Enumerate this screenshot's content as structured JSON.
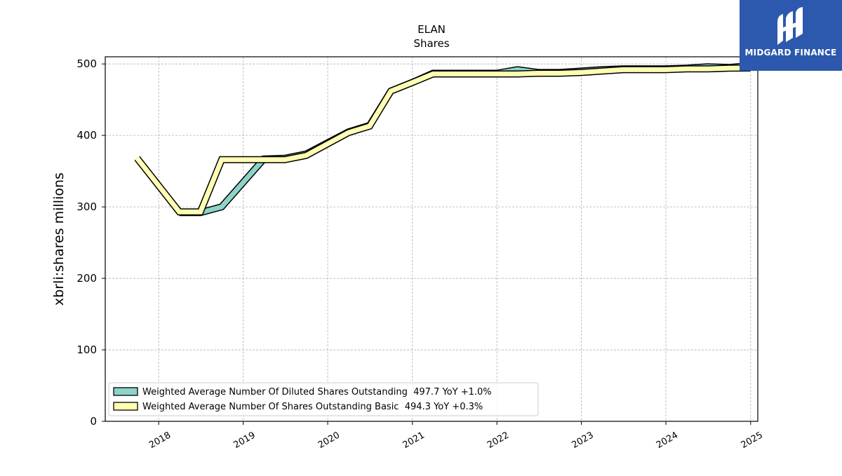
{
  "brand": {
    "name": "MIDGARD FINANCE",
    "color": "#2c59ad"
  },
  "chart_data": {
    "type": "line",
    "title": "ELAN",
    "subtitle": "Shares",
    "ylabel": "xbrli:shares millions",
    "xlabel": "",
    "ylim": [
      0,
      510
    ],
    "yticks": [
      0,
      100,
      200,
      300,
      400,
      500
    ],
    "xticks": [
      "2018",
      "2019",
      "2020",
      "2021",
      "2022",
      "2023",
      "2024",
      "2025"
    ],
    "xlim": [
      "2017-05-15",
      "2025-02-01"
    ],
    "grid": true,
    "legend_position": "lower-left",
    "series": [
      {
        "name": "Weighted Average Number Of Diluted Shares Outstanding  497.7 YoY +1.0%",
        "color": "#8dd3c7",
        "points": [
          [
            "2018-03-31",
            292
          ],
          [
            "2018-06-30",
            292
          ],
          [
            "2018-09-30",
            300
          ],
          [
            "2019-03-31",
            367
          ],
          [
            "2019-06-30",
            368
          ],
          [
            "2019-09-30",
            374
          ],
          [
            "2020-03-31",
            405
          ],
          [
            "2020-06-30",
            414
          ],
          [
            "2020-09-30",
            462
          ],
          [
            "2020-12-31",
            474
          ],
          [
            "2021-03-31",
            487
          ],
          [
            "2021-06-30",
            487
          ],
          [
            "2021-12-31",
            487
          ],
          [
            "2022-03-31",
            492
          ],
          [
            "2022-06-30",
            488
          ],
          [
            "2022-09-30",
            488
          ],
          [
            "2022-12-31",
            490
          ],
          [
            "2023-03-31",
            492
          ],
          [
            "2023-06-30",
            493
          ],
          [
            "2023-09-30",
            493
          ],
          [
            "2023-12-31",
            493
          ],
          [
            "2024-03-31",
            494
          ],
          [
            "2024-06-30",
            496
          ],
          [
            "2024-09-30",
            495
          ],
          [
            "2024-12-31",
            497.7
          ]
        ]
      },
      {
        "name": "Weighted Average Number Of Shares Outstanding Basic  494.3 YoY +0.3%",
        "color": "#ffffb3",
        "points": [
          [
            "2017-09-30",
            368
          ],
          [
            "2018-03-31",
            293
          ],
          [
            "2018-06-30",
            293
          ],
          [
            "2018-09-30",
            366
          ],
          [
            "2019-03-31",
            366
          ],
          [
            "2019-06-30",
            366
          ],
          [
            "2019-09-30",
            372
          ],
          [
            "2020-03-31",
            404
          ],
          [
            "2020-06-30",
            413
          ],
          [
            "2020-09-30",
            462
          ],
          [
            "2020-12-31",
            474
          ],
          [
            "2021-03-31",
            486
          ],
          [
            "2021-06-30",
            486
          ],
          [
            "2021-12-31",
            486
          ],
          [
            "2022-03-31",
            486
          ],
          [
            "2022-06-30",
            487
          ],
          [
            "2022-09-30",
            487
          ],
          [
            "2022-12-31",
            488
          ],
          [
            "2023-03-31",
            490
          ],
          [
            "2023-06-30",
            492
          ],
          [
            "2023-09-30",
            492
          ],
          [
            "2023-12-31",
            492
          ],
          [
            "2024-03-31",
            493
          ],
          [
            "2024-06-30",
            493
          ],
          [
            "2024-09-30",
            494
          ],
          [
            "2024-12-31",
            494.3
          ]
        ]
      }
    ]
  }
}
